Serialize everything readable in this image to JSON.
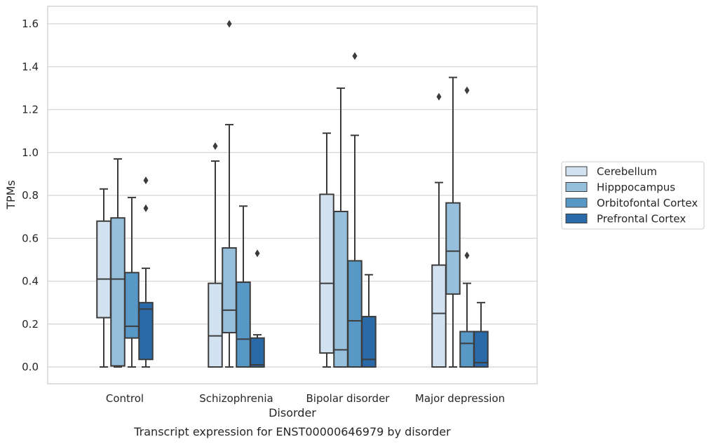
{
  "caption": "Transcript expression for ENST00000646979 by disorder",
  "chart_data": {
    "type": "box",
    "title": "",
    "xlabel": "Disorder",
    "ylabel": "TPMs",
    "ylim": [
      -0.08,
      1.68
    ],
    "yticks": [
      "0.0",
      "0.2",
      "0.4",
      "0.6",
      "0.8",
      "1.0",
      "1.2",
      "1.4",
      "1.6"
    ],
    "grid": "horizontal",
    "legend_position": "right",
    "categories": [
      "Control",
      "Schizophrenia",
      "Bipolar disorder",
      "Major depression"
    ],
    "series": [
      {
        "name": "Cerebellum",
        "color": "#d2e2f0",
        "boxes": [
          {
            "whislo": 0.0,
            "q1": 0.23,
            "med": 0.41,
            "q3": 0.68,
            "whishi": 0.83,
            "fliers": []
          },
          {
            "whislo": 0.0,
            "q1": 0.0,
            "med": 0.145,
            "q3": 0.39,
            "whishi": 0.96,
            "fliers": [
              1.03
            ]
          },
          {
            "whislo": 0.0,
            "q1": 0.065,
            "med": 0.39,
            "q3": 0.805,
            "whishi": 1.09,
            "fliers": []
          },
          {
            "whislo": 0.0,
            "q1": 0.0,
            "med": 0.25,
            "q3": 0.475,
            "whishi": 0.86,
            "fliers": [
              1.26
            ]
          }
        ]
      },
      {
        "name": "Hipppocampus",
        "color": "#96bfdb",
        "boxes": [
          {
            "whislo": 0.0,
            "q1": 0.005,
            "med": 0.41,
            "q3": 0.695,
            "whishi": 0.97,
            "fliers": []
          },
          {
            "whislo": 0.0,
            "q1": 0.16,
            "med": 0.265,
            "q3": 0.555,
            "whishi": 1.13,
            "fliers": [
              1.6
            ]
          },
          {
            "whislo": 0.0,
            "q1": 0.0,
            "med": 0.08,
            "q3": 0.725,
            "whishi": 1.3,
            "fliers": []
          },
          {
            "whislo": 0.0,
            "q1": 0.34,
            "med": 0.54,
            "q3": 0.765,
            "whishi": 1.35,
            "fliers": []
          }
        ]
      },
      {
        "name": "Orbitofontal Cortex",
        "color": "#5798c7",
        "boxes": [
          {
            "whislo": 0.0,
            "q1": 0.135,
            "med": 0.19,
            "q3": 0.44,
            "whishi": 0.79,
            "fliers": []
          },
          {
            "whislo": 0.0,
            "q1": 0.0,
            "med": 0.13,
            "q3": 0.395,
            "whishi": 0.75,
            "fliers": []
          },
          {
            "whislo": 0.0,
            "q1": 0.0,
            "med": 0.215,
            "q3": 0.495,
            "whishi": 1.08,
            "fliers": [
              1.45
            ]
          },
          {
            "whislo": 0.0,
            "q1": 0.0,
            "med": 0.11,
            "q3": 0.165,
            "whishi": 0.39,
            "fliers": [
              0.52,
              1.29
            ]
          }
        ]
      },
      {
        "name": "Prefrontal Cortex",
        "color": "#2a6aa8",
        "boxes": [
          {
            "whislo": 0.0,
            "q1": 0.035,
            "med": 0.27,
            "q3": 0.3,
            "whishi": 0.46,
            "fliers": [
              0.74,
              0.87
            ]
          },
          {
            "whislo": 0.0,
            "q1": 0.0,
            "med": 0.01,
            "q3": 0.135,
            "whishi": 0.15,
            "fliers": [
              0.53
            ]
          },
          {
            "whislo": 0.0,
            "q1": 0.0,
            "med": 0.035,
            "q3": 0.235,
            "whishi": 0.43,
            "fliers": []
          },
          {
            "whislo": 0.0,
            "q1": 0.0,
            "med": 0.02,
            "q3": 0.165,
            "whishi": 0.3,
            "fliers": []
          }
        ]
      }
    ]
  }
}
